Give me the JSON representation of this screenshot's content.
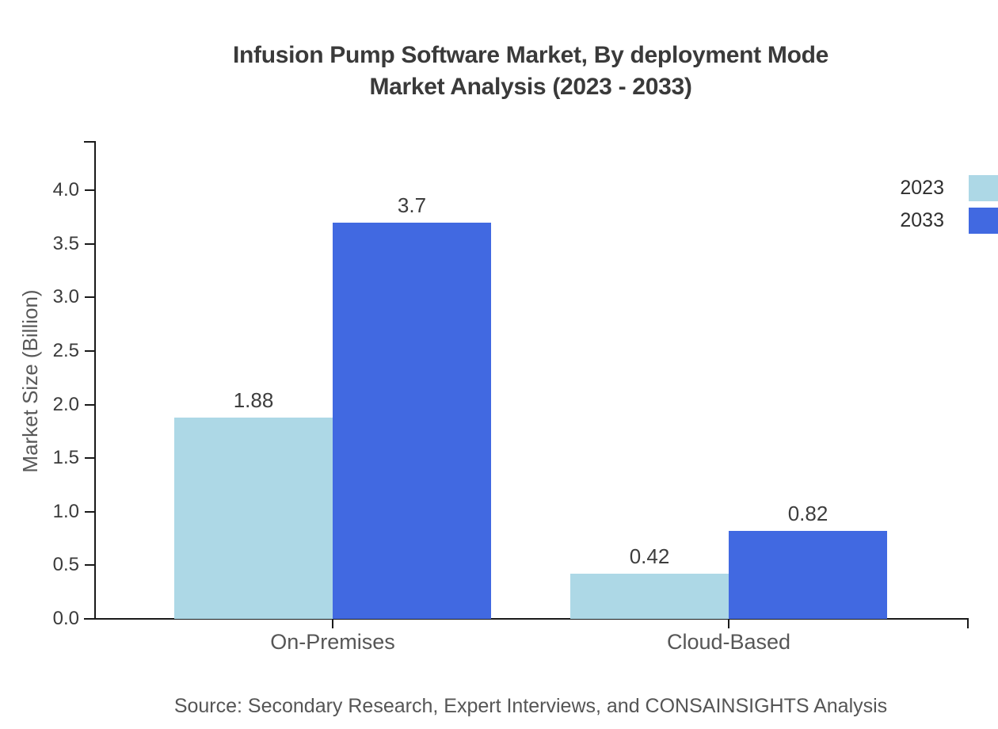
{
  "chart_data": {
    "type": "bar",
    "title": "Infusion Pump Software Market, By deployment Mode Market Analysis (2023 - 2033)",
    "title_lines": [
      "Infusion Pump Software Market, By deployment Mode",
      "Market Analysis (2023 - 2033)"
    ],
    "categories": [
      "On-Premises",
      "Cloud-Based"
    ],
    "series": [
      {
        "name": "2023",
        "color": "#ADD8E6",
        "values": [
          1.88,
          0.42
        ],
        "labels": [
          "1.88",
          "0.42"
        ]
      },
      {
        "name": "2033",
        "color": "#4169E1",
        "values": [
          3.7,
          0.82
        ],
        "labels": [
          "3.7",
          "0.82"
        ]
      }
    ],
    "ylabel": "Market Size (Billion)",
    "yticks": [
      0,
      0.5,
      1,
      1.5,
      2,
      2.5,
      3,
      3.5,
      4
    ],
    "ylim": [
      0,
      4.45
    ],
    "grid": false,
    "legend_position": "upper-right",
    "legend_entries": [
      "2023",
      "2033"
    ],
    "colors": {
      "series_2023": "#ADD8E6",
      "series_2033": "#4169E1",
      "axis": "#1a1a1a",
      "text": "#3a3a3a"
    }
  },
  "footer": {
    "source_note": "Source: Secondary Research, Expert Interviews, and CONSAINSIGHTS Analysis"
  }
}
